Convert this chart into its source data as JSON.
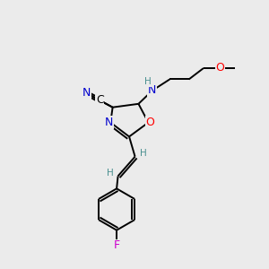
{
  "bg_color": "#ebebeb",
  "bond_color": "#000000",
  "atom_colors": {
    "N": "#0000cd",
    "O": "#ff0000",
    "F": "#cc00cc",
    "C": "#000000",
    "H": "#4a9090"
  },
  "font_size_atom": 9,
  "font_size_small": 7.5,
  "figsize": [
    3.0,
    3.0
  ],
  "dpi": 100
}
